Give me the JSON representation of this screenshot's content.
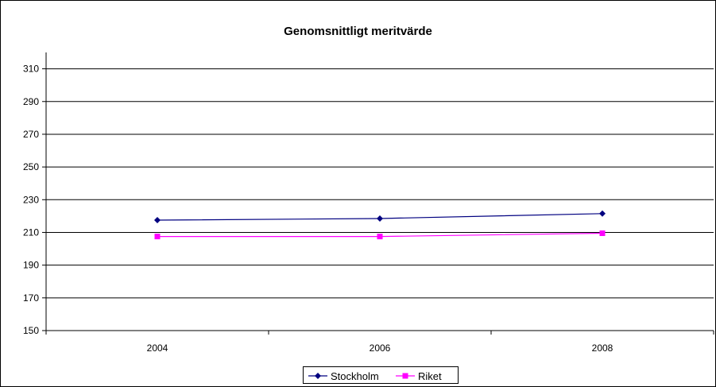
{
  "chart_data": {
    "type": "line",
    "title": "Genomsnittligt meritvärde",
    "xlabel": "",
    "ylabel": "",
    "categories": [
      "2004",
      "2006",
      "2008"
    ],
    "ylim": [
      150,
      320
    ],
    "yticks": [
      150,
      170,
      190,
      210,
      230,
      250,
      270,
      290,
      310
    ],
    "grid": "horizontal",
    "legend": "bottom",
    "series": [
      {
        "name": "Stockholm",
        "values": [
          217.5,
          218.5,
          221.5
        ],
        "color": "#000080",
        "marker": "diamond"
      },
      {
        "name": "Riket",
        "values": [
          207.5,
          207.5,
          209.5
        ],
        "color": "#ff00ff",
        "marker": "square"
      }
    ]
  }
}
